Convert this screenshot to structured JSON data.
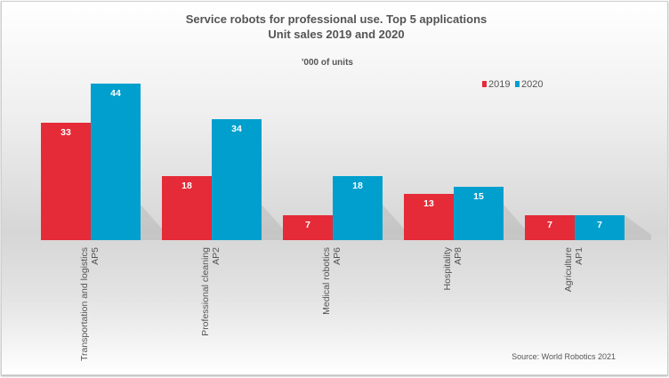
{
  "chart_data": {
    "type": "bar",
    "title": "Service robots for professional use. Top 5 applications",
    "subtitle": "Unit sales 2019 and 2020",
    "unit_label": "'000 of units",
    "categories": [
      [
        "Transportation and logistics",
        "AP5"
      ],
      [
        "Professional cleaning",
        "AP2"
      ],
      [
        "Medical robotics",
        "AP6"
      ],
      [
        "Hospitality",
        "AP8"
      ],
      [
        "Agriculture",
        "AP1"
      ]
    ],
    "series": [
      {
        "name": "2019",
        "color": "#e52b38",
        "values": [
          33,
          18,
          7,
          13,
          7
        ]
      },
      {
        "name": "2020",
        "color": "#009fce",
        "values": [
          44,
          34,
          18,
          15,
          7
        ]
      }
    ],
    "ylim": [
      0,
      44
    ],
    "grid": false,
    "legend_placement": "top-right",
    "source": "Source: World Robotics 2021"
  }
}
